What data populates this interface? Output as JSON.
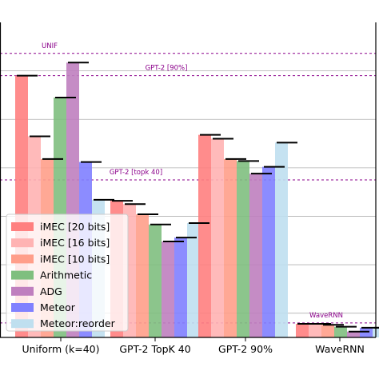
{
  "chart_data": {
    "type": "bar",
    "title": "",
    "xlabel": "",
    "ylabel": "",
    "ylim": [
      0,
      6.5
    ],
    "grid": "y",
    "categories": [
      "Uniform (k=40)",
      "GPT-2 TopK 40",
      "GPT-2 90%",
      "WaveRNN"
    ],
    "series": [
      {
        "name": "iMEC [20 bits]",
        "color": "#ff8080",
        "values": [
          5.4,
          2.82,
          4.18,
          0.28
        ]
      },
      {
        "name": "iMEC [16 bits]",
        "color": "#ffb3b3",
        "values": [
          4.15,
          2.75,
          4.1,
          0.28
        ]
      },
      {
        "name": "iMEC [10 bits]",
        "color": "#ff9e8a",
        "values": [
          3.68,
          2.54,
          3.68,
          0.26
        ]
      },
      {
        "name": "Arithmetic",
        "color": "#7fbf7f",
        "values": [
          4.95,
          2.33,
          3.64,
          0.22
        ]
      },
      {
        "name": "ADG",
        "color": "#bf7fbf",
        "values": [
          5.67,
          1.98,
          3.38,
          0.12
        ]
      },
      {
        "name": "Meteor",
        "color": "#8080ff",
        "values": [
          3.62,
          2.06,
          3.52,
          0.2
        ]
      },
      {
        "name": "Meteor:reorder",
        "color": "#bfdfef",
        "values": [
          2.84,
          2.36,
          4.02,
          0.2
        ]
      }
    ],
    "reference_lines": [
      {
        "label": "UNIF",
        "value": 5.86
      },
      {
        "label": "GPT-2 [90%]",
        "value": 5.4
      },
      {
        "label": "GPT-2 [topk 40]",
        "value": 3.25
      },
      {
        "label": "WaveRNN",
        "value": 0.3
      }
    ],
    "legend": {
      "placement": "lower-left"
    }
  }
}
